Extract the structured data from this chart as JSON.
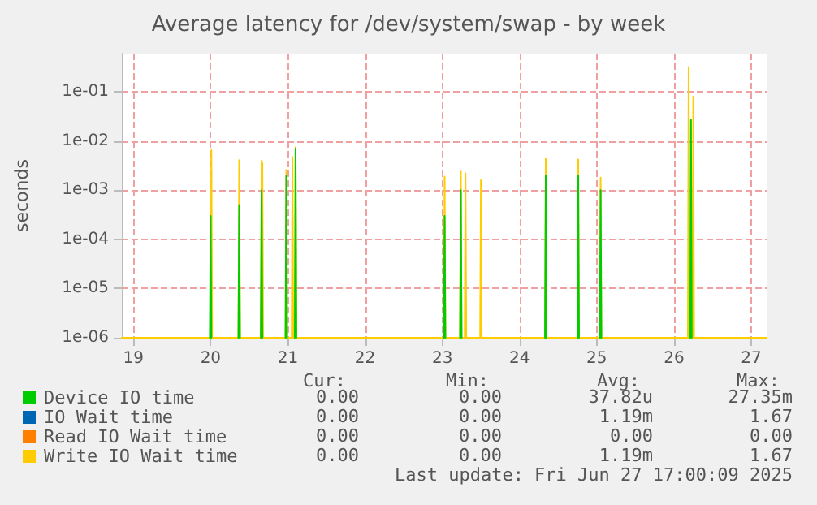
{
  "chart_data": {
    "type": "line",
    "title": "Average latency for /dev/system/swap - by week",
    "ylabel": "seconds",
    "log": "y",
    "grid": true,
    "legend": "bottom",
    "marker": "none",
    "line_style": "solid",
    "xlim": [
      18.85,
      27.2
    ],
    "xticks": [
      19,
      20,
      21,
      22,
      23,
      24,
      25,
      26,
      27
    ],
    "ylim": [
      1e-06,
      0.6
    ],
    "yticks": [
      {
        "value": 1e-06,
        "label": "1e-06"
      },
      {
        "value": 1e-05,
        "label": "1e-05"
      },
      {
        "value": 0.0001,
        "label": "1e-04"
      },
      {
        "value": 0.001,
        "label": "1e-03"
      },
      {
        "value": 0.01,
        "label": "1e-02"
      },
      {
        "value": 0.1,
        "label": "1e-01"
      }
    ],
    "series": [
      {
        "name": "Device IO time",
        "color": "#00cc00",
        "x": [
          19.99,
          20.0,
          20.01,
          20.2,
          20.36,
          20.37,
          20.38,
          20.5,
          20.65,
          20.66,
          20.67,
          20.8,
          20.97,
          20.98,
          20.99,
          21.05,
          21.09,
          21.1,
          21.11,
          22.0,
          23.02,
          23.03,
          23.04,
          23.1,
          23.23,
          23.24,
          23.25,
          24.0,
          24.33,
          24.34,
          24.35,
          24.5,
          24.75,
          24.76,
          24.77,
          24.9,
          25.04,
          25.05,
          25.06,
          25.5,
          26.21,
          26.22,
          26.23
        ],
        "values": [
          1e-06,
          0.0003,
          1e-06,
          null,
          1e-06,
          0.0005,
          1e-06,
          null,
          1e-06,
          0.001,
          1e-06,
          null,
          1e-06,
          0.002,
          1e-06,
          null,
          1e-06,
          0.007,
          1e-06,
          null,
          1e-06,
          0.0003,
          1e-06,
          null,
          1e-06,
          0.001,
          1e-06,
          null,
          1e-06,
          0.002,
          1e-06,
          null,
          1e-06,
          0.002,
          1e-06,
          null,
          1e-06,
          0.001,
          1e-06,
          null,
          1e-06,
          0.027,
          1e-06
        ]
      },
      {
        "name": "IO Wait time",
        "color": "#0066b3"
      },
      {
        "name": "Read IO Wait time",
        "color": "#ff8000"
      },
      {
        "name": "Write IO Wait time",
        "color": "#ffcc00",
        "x": [
          18.85,
          20.0,
          20.01,
          20.02,
          20.36,
          20.37,
          20.38,
          20.65,
          20.66,
          20.67,
          20.68,
          20.97,
          20.98,
          20.99,
          21.05,
          21.06,
          21.07,
          21.09,
          21.1,
          21.11,
          23.02,
          23.03,
          23.04,
          23.23,
          23.24,
          23.25,
          23.29,
          23.3,
          23.31,
          23.49,
          23.5,
          23.51,
          24.33,
          24.34,
          24.35,
          24.75,
          24.76,
          24.77,
          25.04,
          25.05,
          25.06,
          26.18,
          26.19,
          26.2,
          26.24,
          26.25,
          26.26,
          27.2
        ],
        "values": [
          1e-06,
          1e-06,
          0.0065,
          1e-06,
          1e-06,
          0.0041,
          1e-06,
          1e-06,
          0.004,
          0.0035,
          1e-06,
          1e-06,
          0.0026,
          1e-06,
          1e-06,
          0.0047,
          1e-06,
          1e-06,
          0.0075,
          1e-06,
          1e-06,
          0.0019,
          1e-06,
          1e-06,
          0.0024,
          1e-06,
          1e-06,
          0.0022,
          1e-06,
          1e-06,
          0.0016,
          1e-06,
          1e-06,
          0.0045,
          1e-06,
          1e-06,
          0.0042,
          1e-06,
          1e-06,
          0.0018,
          1e-06,
          1e-06,
          0.32,
          1e-06,
          1e-06,
          0.08,
          1e-06,
          1e-06
        ]
      }
    ],
    "annotations": [
      "Cur:",
      "Min:",
      "Avg:",
      "Max:",
      "0.00",
      "0.00",
      "37.82u",
      "27.35m",
      "0.00",
      "0.00",
      "1.19m",
      "1.67",
      "0.00",
      "0.00",
      "0.00",
      "0.00",
      "0.00",
      "0.00",
      "1.19m",
      "1.67",
      "Last update: Fri Jun 27 17:00:09 2025"
    ]
  }
}
